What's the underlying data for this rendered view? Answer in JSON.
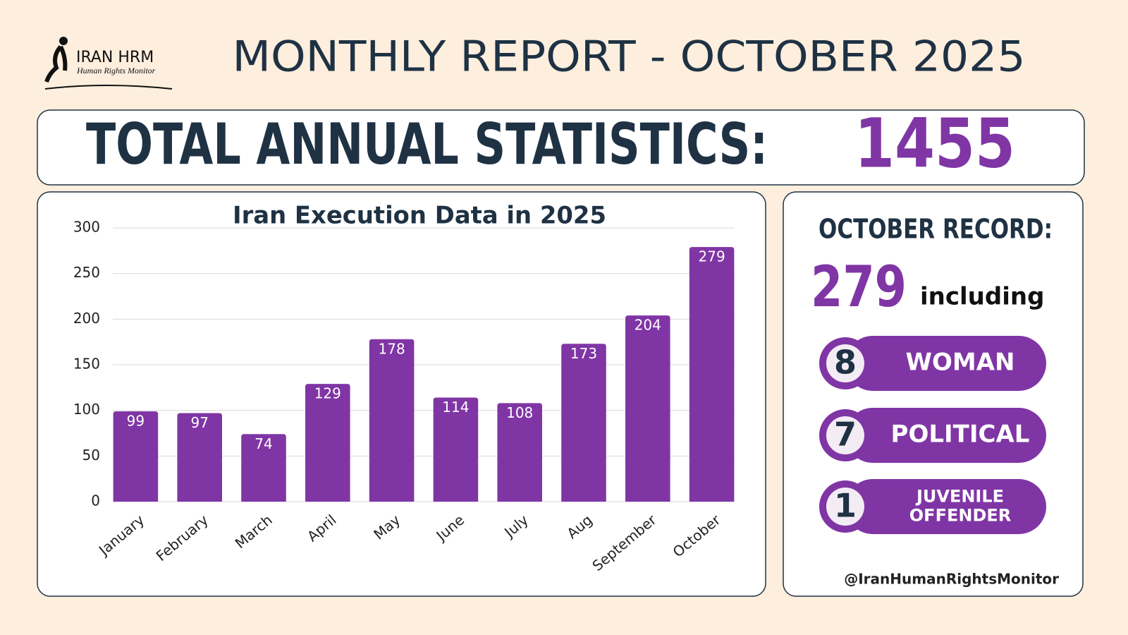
{
  "header": {
    "logo_name": "IRAN HRM",
    "logo_subtitle": "Human Rights Monitor",
    "title": "MONTHLY REPORT - OCTOBER 2025"
  },
  "total": {
    "label": "TOTAL ANNUAL STATISTICS:",
    "value": 1455
  },
  "chart_data": {
    "type": "bar",
    "title": "Iran Execution Data in 2025",
    "categories": [
      "January",
      "February",
      "March",
      "April",
      "May",
      "June",
      "July",
      "Aug",
      "September",
      "October"
    ],
    "values": [
      99,
      97,
      74,
      129,
      178,
      114,
      108,
      173,
      204,
      279
    ],
    "color": "#8035a5",
    "ylim": [
      0,
      300
    ],
    "yticks": [
      0,
      50,
      100,
      150,
      200,
      250,
      300
    ],
    "grid": true
  },
  "october": {
    "heading": "OCTOBER RECORD:",
    "value": 279,
    "suffix": "including",
    "items": [
      {
        "count": 8,
        "label": [
          "WOMAN"
        ]
      },
      {
        "count": 7,
        "label": [
          "POLITICAL"
        ]
      },
      {
        "count": 1,
        "label": [
          "JUVENILE",
          "OFFENDER"
        ]
      }
    ],
    "handle": "@IranHumanRightsMonitor"
  }
}
